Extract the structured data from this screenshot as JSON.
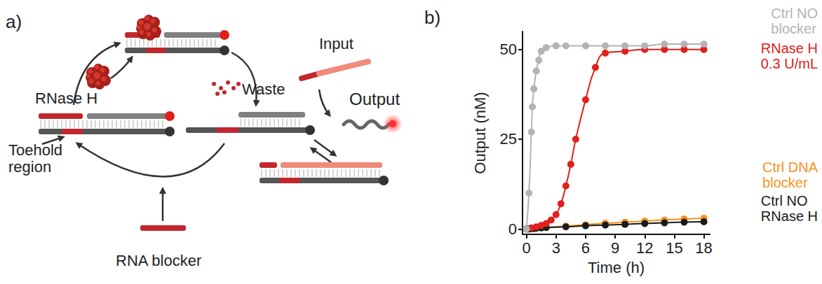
{
  "diagram": {
    "panel": "a)",
    "labels": {
      "enzyme": "RNase H",
      "waste": "Waste",
      "input": "Input",
      "output": "Output",
      "toehold": "Toehold region",
      "blocker": "RNA blocker"
    }
  },
  "chart_data": {
    "type": "line",
    "panel": "b)",
    "x_label": "Time (h)",
    "y_label": "Output (nM)",
    "xlim": [
      -0.4,
      18.6
    ],
    "ylim": [
      -1.5,
      55
    ],
    "xticks": [
      0,
      3,
      6,
      9,
      12,
      15,
      18
    ],
    "yticks": [
      0,
      25,
      50
    ],
    "grid": false,
    "marker": "circle",
    "line_style": "solid",
    "series": [
      {
        "name": "Ctrl DNA blocker",
        "color": "#f7931e",
        "x": [
          0,
          0.5,
          1,
          1.5,
          2,
          4,
          6,
          8,
          10,
          12,
          14,
          16,
          18
        ],
        "values": [
          0,
          0.1,
          0.2,
          0.3,
          0.4,
          0.8,
          1.2,
          1.6,
          1.9,
          2.2,
          2.5,
          2.8,
          3
        ]
      },
      {
        "name": "Ctrl NO RNase H",
        "color": "#1a1a1a",
        "x": [
          0,
          0.25,
          0.5,
          0.75,
          1,
          1.5,
          2,
          4,
          6,
          8,
          10,
          12,
          14,
          16,
          18
        ],
        "values": [
          0,
          0,
          0.1,
          0.1,
          0.2,
          0.3,
          0.4,
          0.6,
          0.9,
          1.1,
          1.3,
          1.5,
          1.7,
          1.9,
          2
        ]
      },
      {
        "name": "RNase H 0.3 U/mL",
        "color": "#e0201b",
        "x": [
          0,
          0.5,
          1,
          1.5,
          2,
          2.5,
          3,
          3.5,
          4,
          4.5,
          5,
          6,
          7,
          8,
          10,
          12,
          14,
          16,
          18
        ],
        "values": [
          0,
          0.3,
          0.6,
          1,
          1.5,
          2.5,
          4,
          7,
          12,
          18,
          25,
          36,
          45,
          49,
          49.5,
          50,
          50,
          50,
          50
        ]
      },
      {
        "name": "Ctrl NO blocker",
        "color": "#b3b3b3",
        "x": [
          0,
          0.25,
          0.5,
          0.6,
          0.75,
          1,
          1.25,
          1.5,
          2,
          3,
          4,
          6,
          8,
          10,
          12,
          14,
          16,
          18
        ],
        "values": [
          0,
          10,
          27,
          34,
          39,
          44,
          47,
          49.5,
          50.5,
          51,
          51,
          51,
          51,
          51,
          51,
          51.5,
          51.5,
          51.5
        ]
      }
    ]
  }
}
